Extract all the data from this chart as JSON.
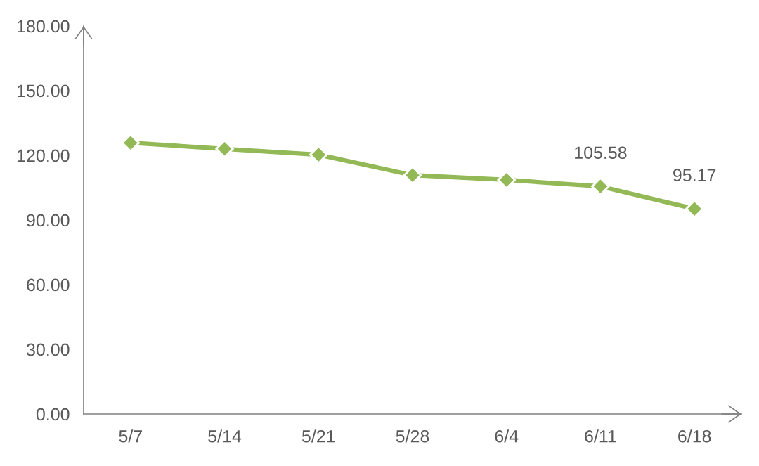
{
  "chart_data": {
    "type": "line",
    "categories": [
      "5/7",
      "5/14",
      "5/21",
      "5/28",
      "6/4",
      "6/11",
      "6/18"
    ],
    "series": [
      {
        "color": "#92b955",
        "values": [
          125.8,
          123.0,
          120.3,
          110.8,
          108.6,
          105.58,
          95.17
        ],
        "value_labels": [
          null,
          null,
          null,
          null,
          null,
          "105.58",
          "95.17"
        ]
      }
    ],
    "ylim": [
      0,
      180
    ],
    "yticks": [
      {
        "value": 0,
        "label": "0.00"
      },
      {
        "value": 30,
        "label": "30.00"
      },
      {
        "value": 60,
        "label": "60.00"
      },
      {
        "value": 90,
        "label": "90.00"
      },
      {
        "value": 120,
        "label": "120.00"
      },
      {
        "value": 150,
        "label": "150.00"
      },
      {
        "value": 180,
        "label": "180.00"
      }
    ],
    "marker": "diamond",
    "line_style": "solid"
  }
}
